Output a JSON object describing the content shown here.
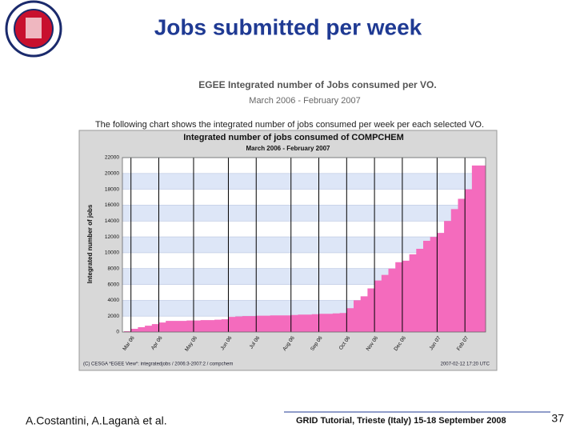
{
  "slide": {
    "title": "Jobs submitted per week",
    "header": "EGEE Integrated number of Jobs consumed per VO.",
    "period": "March 2006 - February 2007",
    "intro": "The following chart shows the integrated number of jobs consumed per week per each selected VO.",
    "chart_footer_left": "(C) CESGA *EGEE View*: integratedjobs / 2006:3-2007:2 / compchem",
    "chart_footer_right": "2007-02-12 17:20 UTC",
    "authors": "A.Costantini, A.Laganà et al.",
    "event": "GRID Tutorial, Trieste (Italy) 15-18 September 2008",
    "page": "37"
  },
  "chart_data": {
    "type": "area",
    "title": "Integrated number of jobs consumed of COMPCHEM",
    "subtitle": "March 2006 - February 2007",
    "y_label": "Integrated number of jobs",
    "categories": [
      null,
      "Mar 06",
      null,
      null,
      null,
      "Apr 06",
      null,
      null,
      null,
      null,
      "May 06",
      null,
      null,
      null,
      null,
      "Jun 06",
      null,
      null,
      null,
      "Jul 06",
      null,
      null,
      null,
      null,
      "Aug 06",
      null,
      null,
      null,
      "Sep 06",
      null,
      null,
      null,
      "Oct 06",
      null,
      null,
      null,
      "Nov 06",
      null,
      null,
      null,
      "Dec 06",
      null,
      null,
      null,
      null,
      "Jan 07",
      null,
      null,
      null,
      "Feb 07",
      null,
      null
    ],
    "series": [
      {
        "name": "COMPCHEM",
        "color": "#f46bbd",
        "values": [
          100,
          400,
          600,
          800,
          1000,
          1200,
          1400,
          1400,
          1400,
          1450,
          1450,
          1500,
          1500,
          1550,
          1600,
          1900,
          1950,
          2000,
          2000,
          2050,
          2050,
          2100,
          2100,
          2100,
          2150,
          2200,
          2200,
          2250,
          2300,
          2300,
          2350,
          2400,
          3000,
          4000,
          4500,
          5500,
          6500,
          7200,
          8000,
          8800,
          9000,
          9800,
          10500,
          11500,
          12000,
          12500,
          14000,
          15500,
          16800,
          18000,
          21000,
          21000
        ]
      }
    ],
    "ylim": [
      0,
      22000
    ],
    "yticks": [
      0,
      2000,
      4000,
      6000,
      8000,
      10000,
      12000,
      14000,
      16000,
      18000,
      20000,
      22000
    ],
    "grid": true
  }
}
